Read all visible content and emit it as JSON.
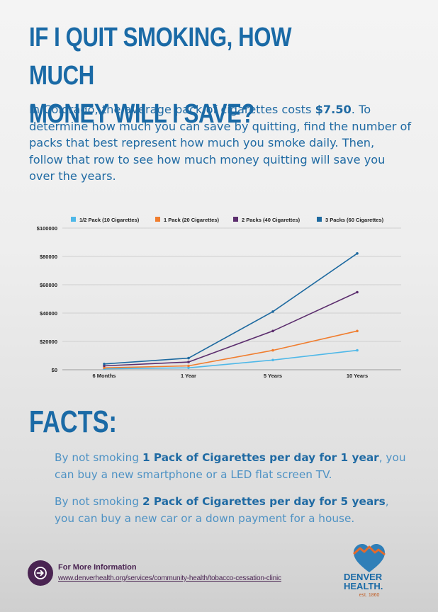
{
  "title_line1": "IF I QUIT SMOKING, HOW MUCH",
  "title_line2": "MONEY WILL I SAVE?",
  "intro": {
    "before": "In Colorado, the average pack of cigarettes costs ",
    "price": "$7.50",
    "after": ". To determine how much you can save by quitting, find the number of packs that best represent how much you smoke daily. Then, follow that row to see how much money quitting will save you over the years."
  },
  "chart_data": {
    "type": "line",
    "title": "",
    "xlabel": "",
    "ylabel": "",
    "categories": [
      "6 Months",
      "1 Year",
      "5 Years",
      "10 Years"
    ],
    "ylim": [
      0,
      100000
    ],
    "yticks": [
      0,
      20000,
      40000,
      60000,
      80000,
      100000
    ],
    "ytick_labels": [
      "$0",
      "$20000",
      "$40000",
      "$60000",
      "$80000",
      "$100000"
    ],
    "grid": true,
    "legend": "top",
    "series": [
      {
        "name": "1/2 Pack (10 Cigarettes)",
        "color": "#4fb8e8",
        "values": [
          684,
          1369,
          6844,
          13688
        ]
      },
      {
        "name": "1 Pack (20 Cigarettes)",
        "color": "#f07d2e",
        "values": [
          1369,
          2738,
          13688,
          27375
        ]
      },
      {
        "name": "2 Packs (40 Cigarettes)",
        "color": "#5c2e6e",
        "values": [
          2738,
          5475,
          27375,
          54750
        ]
      },
      {
        "name": "3 Packs (60 Cigarettes)",
        "color": "#1e6aa0",
        "values": [
          4106,
          8213,
          41063,
          82125
        ]
      }
    ]
  },
  "facts_heading": "FACTS:",
  "facts": [
    {
      "before": "By not smoking ",
      "bold": "1 Pack of Cigarettes per day for 1 year",
      "after": ", you can buy a new smartphone or a LED flat screen TV."
    },
    {
      "before": "By not smoking ",
      "bold": "2 Pack of Cigarettes per day for 5 years",
      "after": ", you can buy a new car or a down payment for a house."
    }
  ],
  "footer": {
    "icon": "arrow-right-icon",
    "label": "For More Information",
    "url": "www.denverhealth.org/services/community-health/tobacco-cessation-clinic"
  },
  "logo": {
    "line1": "DENVER",
    "line2": "HEALTH.",
    "est": "est. 1860"
  },
  "colors": {
    "primary": "#1a6aa6",
    "purple": "#4a2452"
  }
}
